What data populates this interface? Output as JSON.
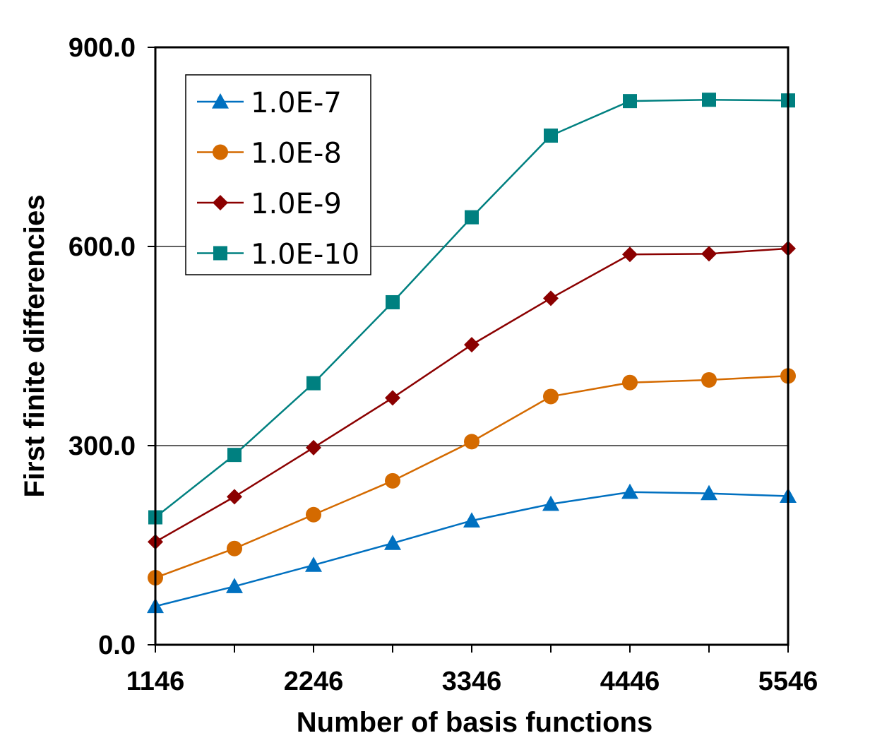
{
  "chart_data": {
    "type": "line",
    "title": "",
    "xlabel": "Number of basis functions",
    "ylabel": "First finite differencies",
    "x": [
      1146,
      1696,
      2246,
      2796,
      3346,
      3896,
      4446,
      4996,
      5546
    ],
    "xlim": [
      1146,
      5546
    ],
    "xticks": [
      1146,
      2246,
      3346,
      4446,
      5546
    ],
    "xtick_labels": [
      "1146",
      "2246",
      "3346",
      "4446",
      "5546"
    ],
    "ylim": [
      0,
      900
    ],
    "yticks": [
      0,
      300,
      600,
      900
    ],
    "ytick_labels": [
      "0.0",
      "300.0",
      "600.0",
      "900.0"
    ],
    "grid": "horizontal",
    "legend_position": "top-left",
    "series": [
      {
        "name": "1.0E-7",
        "marker": "triangle",
        "color": "#0070c0",
        "values": [
          58,
          88,
          120,
          153,
          187,
          212,
          230,
          228,
          224
        ]
      },
      {
        "name": "1.0E-8",
        "marker": "circle",
        "color": "#d46a00",
        "values": [
          101,
          145,
          196,
          247,
          306,
          374,
          395,
          399,
          405
        ]
      },
      {
        "name": "1.0E-9",
        "marker": "diamond",
        "color": "#8b0000",
        "values": [
          155,
          223,
          297,
          372,
          452,
          522,
          588,
          589,
          597
        ]
      },
      {
        "name": "1.0E-10",
        "marker": "square",
        "color": "#008080",
        "values": [
          192,
          286,
          394,
          516,
          644,
          767,
          819,
          821,
          820
        ]
      }
    ]
  }
}
